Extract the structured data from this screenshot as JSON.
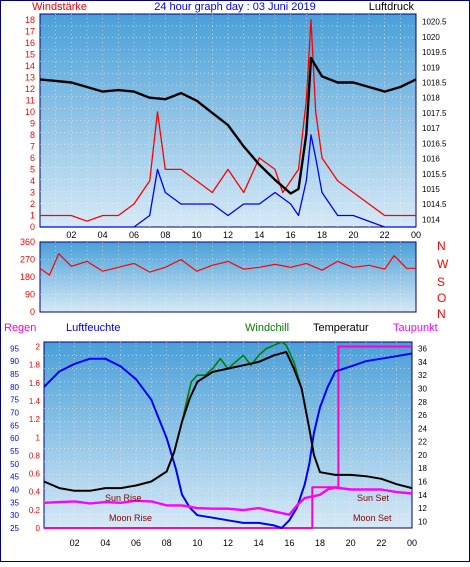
{
  "header": {
    "title": "24 hour graph day : 03 Juni 2019",
    "left_label": "Windstärke",
    "right_label": "Luftdruck"
  },
  "colors": {
    "panel_top": "#4aa0d8",
    "panel_bottom": "#d6e9f6",
    "frame": "#00007f",
    "wind": "#ff0000",
    "gust": "#0000ff",
    "pressure": "#000000",
    "humidity": "#0000ff",
    "temperature": "#000000",
    "windchill": "#008000",
    "dewpoint": "#ff00ff",
    "rain": "#ff00cc",
    "label_red": "#ff0000",
    "label_blue": "#0000ff",
    "label_magenta": "#ff00ff",
    "label_green": "#008000"
  },
  "mid_panel": {
    "direction_labels": [
      "N",
      "W",
      "S",
      "O",
      "N"
    ]
  },
  "bottom_panel": {
    "series_labels": {
      "rain": "Regen",
      "humidity": "Luftfeuchte",
      "windchill": "Windchill",
      "temperature": "Temperatur",
      "dewpoint": "Taupunkt"
    },
    "events": {
      "sun_rise": "Sun Rise",
      "moon_rise": "Moon Rise",
      "sun_set": "Sun Set",
      "moon_set": "Moon Set"
    }
  },
  "chart_data": [
    {
      "id": "wind_pressure",
      "type": "line",
      "title": "24 hour graph day : 03 Juni 2019",
      "xlabel": "",
      "x_tick_labels": [
        "02",
        "04",
        "06",
        "08",
        "10",
        "12",
        "14",
        "16",
        "18",
        "20",
        "22",
        "00"
      ],
      "xlim": [
        0,
        24
      ],
      "y_left": {
        "label": "Windstärke",
        "ticks": [
          0,
          1,
          2,
          3,
          4,
          5,
          6,
          7,
          8,
          9,
          10,
          11,
          12,
          13,
          14,
          15,
          16,
          17,
          18
        ],
        "ylim": [
          0,
          18.5
        ]
      },
      "y_right": {
        "label": "Luftdruck",
        "ticks": [
          "1014",
          "1014.5",
          "1015",
          "1015.5",
          "1016",
          "1016.5",
          "1017",
          "1017.5",
          "1018",
          "1018.5",
          "1019",
          "1019.5",
          "1020",
          "1020.5"
        ],
        "ylim": [
          1013.75,
          1020.75
        ]
      },
      "series": [
        {
          "name": "Luftdruck",
          "axis": "right",
          "x": [
            0,
            1,
            2,
            3,
            4,
            5,
            6,
            7,
            8,
            9,
            10,
            11,
            12,
            13,
            14,
            15,
            16,
            16.5,
            17,
            17.3,
            18,
            19,
            20,
            21,
            22,
            23,
            24
          ],
          "values": [
            1018.6,
            1018.55,
            1018.5,
            1018.35,
            1018.2,
            1018.25,
            1018.2,
            1018.0,
            1017.95,
            1018.15,
            1017.9,
            1017.5,
            1017.1,
            1016.4,
            1015.8,
            1015.3,
            1014.85,
            1015.0,
            1016.8,
            1019.3,
            1018.7,
            1018.5,
            1018.5,
            1018.35,
            1018.2,
            1018.35,
            1018.6
          ]
        },
        {
          "name": "Windstärke",
          "axis": "left",
          "x": [
            0,
            1,
            2,
            3,
            4,
            5,
            6,
            7,
            7.5,
            8,
            9,
            10,
            11,
            12,
            13,
            14,
            15,
            15.5,
            16,
            16.5,
            17,
            17.3,
            17.6,
            18,
            19,
            20,
            21,
            22,
            23,
            24
          ],
          "values": [
            1,
            1,
            1,
            0.5,
            1,
            1,
            2,
            4,
            10,
            5,
            5,
            4,
            3,
            5,
            3,
            6,
            5,
            3,
            4,
            5,
            11,
            18,
            10,
            6,
            4,
            3,
            2,
            1,
            1,
            1
          ]
        },
        {
          "name": "Böen",
          "axis": "left",
          "x": [
            0,
            2,
            4,
            6,
            7,
            7.5,
            8,
            9,
            10,
            11,
            12,
            13,
            14,
            15,
            16,
            16.5,
            17,
            17.3,
            17.6,
            18,
            19,
            20,
            22,
            24
          ],
          "values": [
            0,
            0,
            0,
            0,
            1,
            5,
            3,
            2,
            2,
            2,
            1,
            2,
            2,
            3,
            2,
            1,
            4,
            8,
            6,
            3,
            1,
            1,
            0,
            0
          ]
        }
      ]
    },
    {
      "id": "wind_direction",
      "type": "line",
      "xlim": [
        0,
        24
      ],
      "y_left": {
        "ticks": [
          0,
          90,
          180,
          270,
          360
        ],
        "ylim": [
          0,
          360
        ]
      },
      "y_right": {
        "labels": [
          "N",
          "W",
          "S",
          "O",
          "N"
        ]
      },
      "series": [
        {
          "name": "Windrichtung",
          "x": [
            0,
            0.6,
            1.2,
            2,
            3,
            4,
            5,
            6,
            7,
            8,
            9,
            10,
            11,
            12,
            13,
            14,
            15,
            16,
            17,
            18,
            19,
            20,
            21,
            22,
            22.6,
            23.4,
            24
          ],
          "values": [
            225,
            190,
            300,
            235,
            260,
            210,
            230,
            250,
            205,
            230,
            270,
            210,
            240,
            260,
            220,
            230,
            245,
            230,
            250,
            215,
            260,
            230,
            240,
            220,
            290,
            225,
            225
          ]
        }
      ]
    },
    {
      "id": "temperature_humidity",
      "type": "line",
      "xlim": [
        0,
        24
      ],
      "y_left_rain": {
        "label": "Regen",
        "ticks": [
          "0",
          "0.2",
          "0.4",
          "0.6",
          "0.8",
          "1",
          "1.2",
          "1.4",
          "1.6",
          "1.8",
          "2"
        ],
        "ylim": [
          0,
          2.05
        ]
      },
      "y_left_humidity": {
        "label": "Luftfeuchte",
        "ticks": [
          25,
          30,
          35,
          40,
          45,
          50,
          55,
          60,
          65,
          70,
          75,
          80,
          85,
          90,
          95
        ],
        "ylim": [
          25,
          97.5
        ]
      },
      "y_right": {
        "label": "Temperatur",
        "ticks": [
          10,
          12,
          14,
          16,
          18,
          20,
          22,
          24,
          26,
          28,
          30,
          32,
          34,
          36
        ],
        "ylim": [
          9,
          37
        ]
      },
      "x_tick_labels": [
        "02",
        "04",
        "06",
        "08",
        "10",
        "12",
        "14",
        "16",
        "18",
        "20",
        "22",
        "00"
      ],
      "series": [
        {
          "name": "Luftfeuchte",
          "axis": "humidity",
          "x": [
            0,
            0.5,
            1,
            2,
            3,
            4,
            5,
            6,
            7,
            8,
            8.6,
            9,
            9.5,
            10,
            11,
            12,
            13,
            14,
            15,
            15.5,
            16,
            16.5,
            17,
            17.3,
            17.6,
            18,
            18.5,
            19,
            20,
            21,
            22,
            23,
            24
          ],
          "values": [
            80,
            83,
            86,
            89,
            91,
            91,
            88,
            83,
            75,
            60,
            48,
            38,
            33,
            30,
            29,
            28,
            27,
            27,
            26,
            25,
            28,
            33,
            42,
            50,
            62,
            72,
            80,
            86,
            88,
            90,
            91,
            92,
            93
          ]
        },
        {
          "name": "Temperatur",
          "axis": "temp",
          "x": [
            0,
            1,
            2,
            3,
            4,
            5,
            6,
            7,
            8,
            8.5,
            9,
            9.5,
            10,
            11,
            12,
            13,
            14,
            15,
            15.8,
            16.3,
            16.8,
            17.3,
            17.6,
            18,
            19,
            20,
            21,
            22,
            23,
            24
          ],
          "values": [
            16,
            15,
            14.6,
            14.6,
            15,
            15,
            15.4,
            16,
            17.5,
            20.5,
            25,
            28.5,
            31,
            32.5,
            33,
            33.5,
            34,
            35,
            35.5,
            33,
            30,
            24,
            20,
            17.4,
            17,
            17,
            16.8,
            16.4,
            15.6,
            15
          ]
        },
        {
          "name": "Windchill",
          "axis": "temp",
          "x": [
            9,
            9.3,
            9.6,
            10,
            10.5,
            11,
            11.5,
            12,
            12.5,
            13,
            13.5,
            14,
            14.5,
            15,
            15.5,
            15.8,
            16.3,
            16.8
          ],
          "values": [
            25,
            28,
            31,
            32,
            32,
            33,
            34.5,
            33,
            34,
            35,
            33.5,
            35,
            36,
            36.5,
            37,
            36.5,
            34,
            30
          ]
        },
        {
          "name": "Taupunkt",
          "axis": "temp",
          "x": [
            0,
            1,
            2,
            3,
            4,
            5,
            6,
            7,
            8,
            9,
            10,
            11,
            12,
            13,
            14,
            15,
            16,
            16.5,
            17,
            18,
            18.5,
            19,
            20,
            21,
            22,
            23,
            24
          ],
          "values": [
            12.8,
            12.9,
            13,
            12.7,
            12.9,
            12.8,
            13.1,
            13,
            12.4,
            12.4,
            12.0,
            11.9,
            11.9,
            11.7,
            12,
            11.5,
            11.0,
            12.4,
            13.5,
            14,
            14.8,
            15.1,
            14.8,
            14.8,
            14.8,
            14.4,
            14.2
          ]
        },
        {
          "name": "Regen",
          "axis": "rain",
          "x": [
            0,
            17.5,
            17.5,
            19.2,
            19.2,
            24
          ],
          "values": [
            0,
            0,
            0.45,
            0.45,
            2,
            2
          ]
        }
      ]
    }
  ]
}
